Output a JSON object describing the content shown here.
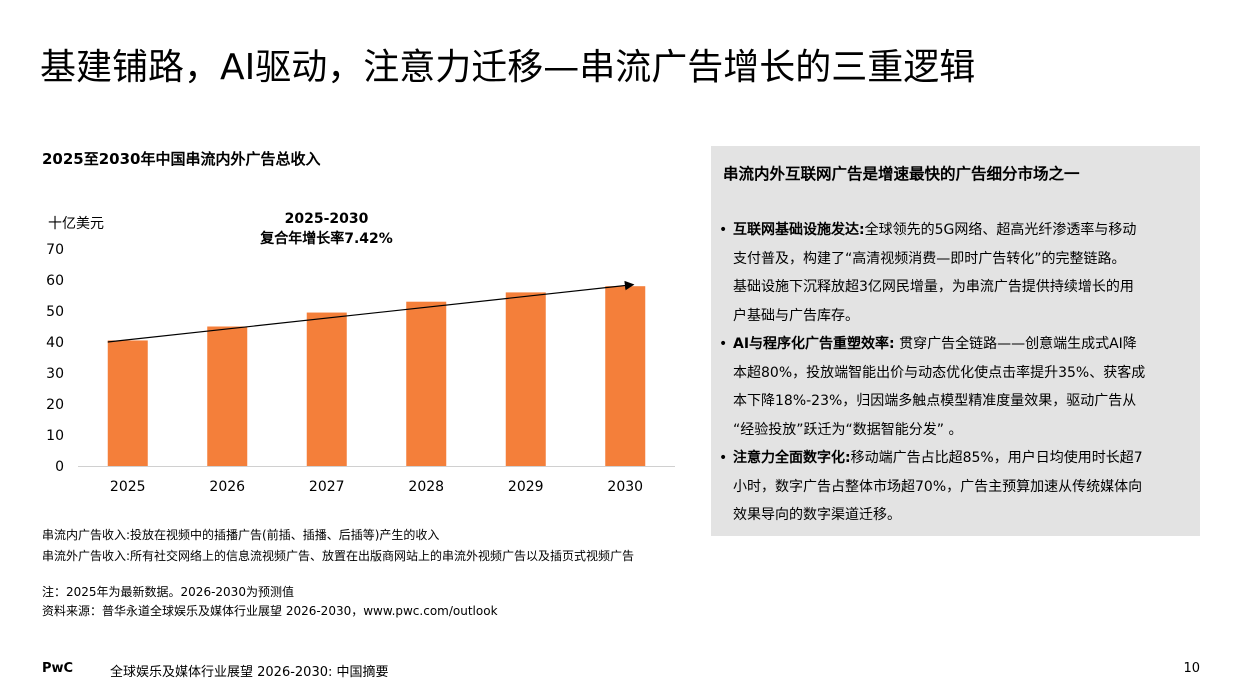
{
  "page": {
    "title": "基建铺路，AI驱动，注意力迁移—串流广告增长的三重逻辑"
  },
  "chart_data": {
    "type": "bar",
    "title": "2025至2030年中国串流内外广告总收入",
    "ylabel": "十亿美元",
    "categories": [
      "2025",
      "2026",
      "2027",
      "2028",
      "2029",
      "2030"
    ],
    "values": [
      40.5,
      45,
      49.5,
      53,
      56,
      58
    ],
    "ylim": [
      0,
      70
    ],
    "yticks": [
      0,
      10,
      20,
      30,
      40,
      50,
      60,
      70
    ],
    "grid": false,
    "bar_color": "#f47f3a",
    "annotation": {
      "line1": "2025-2030",
      "line2": "复合年增长率7.42%",
      "arrow_from": {
        "x": "2025",
        "y": 40
      },
      "arrow_to": {
        "x": "2030",
        "y": 58.5
      }
    }
  },
  "notes": {
    "def_in": "串流内广告收入:投放在视频中的插播广告(前插、插播、后插等)产生的收入",
    "def_out": "串流外广告收入:所有社交网络上的信息流视频广告、放置在出版商网站上的串流外视频广告以及插页式视频广告",
    "note": "注：2025年为最新数据。2026-2030为预测值",
    "source": "资料来源：普华永道全球娱乐及媒体行业展望 2026-2030，www.pwc.com/outlook"
  },
  "panel": {
    "heading": "串流内外互联网广告是增速最快的广告细分市场之一",
    "bullets": [
      {
        "bold": "互联网基础设施发达:",
        "lines": [
          "全球领先的5G网络、超高光纤渗透率与移动",
          "支付普及，构建了“高清视频消费—即时广告转化”的完整链路。",
          "基础设施下沉释放超3亿网民增量，为串流广告提供持续增长的用",
          "户基础与广告库存。"
        ]
      },
      {
        "bold": "AI与程序化广告重塑效率:",
        "lines": [
          " 贯穿广告全链路——创意端生成式AI降",
          "本超80%，投放端智能出价与动态优化使点击率提升35%、获客成",
          "本下降18%-23%，归因端多触点模型精准度量效果，驱动广告从",
          "“经验投放”跃迁为“数据智能分发”  。"
        ]
      },
      {
        "bold": "注意力全面数字化:",
        "lines": [
          "移动端广告占比超85%，用户日均使用时长超7",
          "小时，数字广告占整体市场超70%，广告主预算加速从传统媒体向",
          "效果导向的数字渠道迁移。"
        ]
      }
    ]
  },
  "footer": {
    "brand": "PwC",
    "subtitle": "全球娱乐及媒体行业展望 2026-2030: 中国摘要",
    "page": "10"
  }
}
